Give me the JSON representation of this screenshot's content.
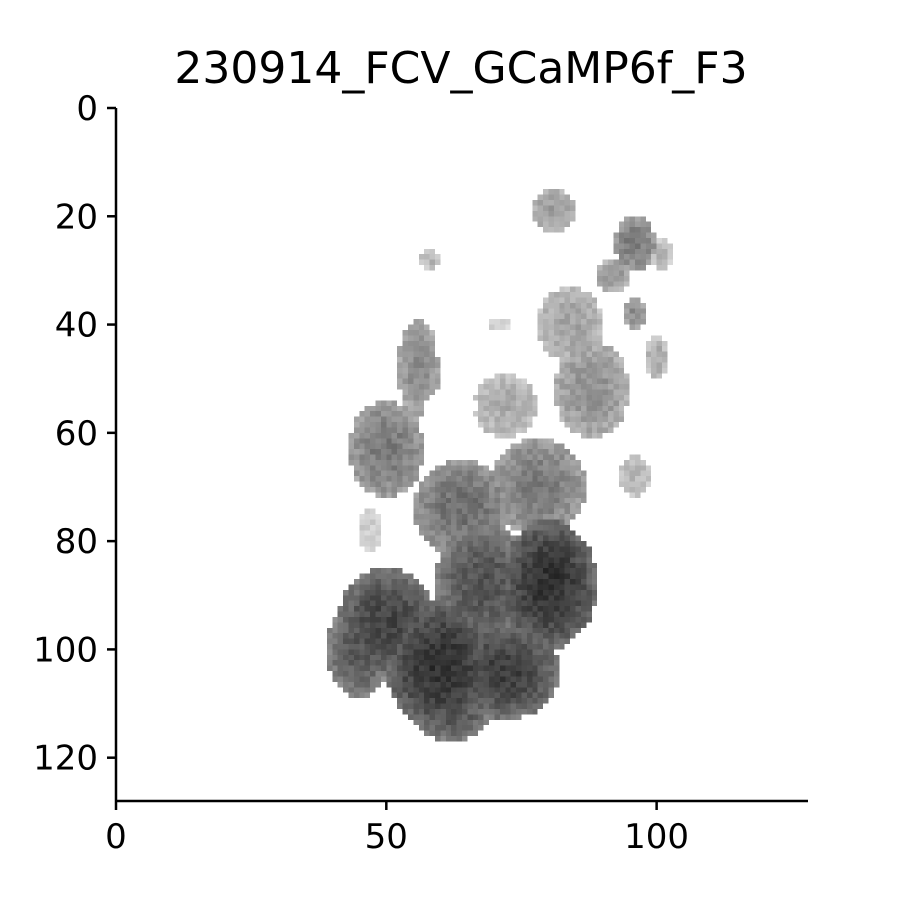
{
  "chart_data": {
    "type": "heatmap",
    "title": "230914_FCV_GCaMP6f_F3",
    "xlabel": "",
    "ylabel": "",
    "xlim": [
      0,
      128
    ],
    "ylim": [
      128,
      0
    ],
    "y_inverted": true,
    "colormap": "gray_r",
    "grid": false,
    "x_ticks": [
      0,
      50,
      100
    ],
    "x_tick_labels": [
      "0",
      "50",
      "100"
    ],
    "y_ticks": [
      0,
      20,
      40,
      60,
      80,
      100,
      120
    ],
    "y_tick_labels": [
      "0",
      "20",
      "40",
      "60",
      "80",
      "100",
      "120"
    ],
    "blobs": [
      {
        "cx": 60,
        "cy": 103,
        "rx": 10,
        "ry": 12,
        "v": 0.85
      },
      {
        "cx": 50,
        "cy": 95,
        "rx": 9,
        "ry": 10,
        "v": 0.78
      },
      {
        "cx": 72,
        "cy": 104,
        "rx": 10,
        "ry": 9,
        "v": 0.8
      },
      {
        "cx": 80,
        "cy": 88,
        "rx": 9,
        "ry": 12,
        "v": 0.85
      },
      {
        "cx": 68,
        "cy": 88,
        "rx": 9,
        "ry": 11,
        "v": 0.72
      },
      {
        "cx": 62,
        "cy": 112,
        "rx": 7,
        "ry": 5,
        "v": 0.72
      },
      {
        "cx": 45,
        "cy": 100,
        "rx": 6,
        "ry": 9,
        "v": 0.7
      },
      {
        "cx": 64,
        "cy": 74,
        "rx": 9,
        "ry": 9,
        "v": 0.6
      },
      {
        "cx": 78,
        "cy": 70,
        "rx": 9,
        "ry": 9,
        "v": 0.55
      },
      {
        "cx": 50,
        "cy": 63,
        "rx": 7,
        "ry": 9,
        "v": 0.55
      },
      {
        "cx": 56,
        "cy": 48,
        "rx": 4,
        "ry": 9,
        "v": 0.48
      },
      {
        "cx": 72,
        "cy": 55,
        "rx": 6,
        "ry": 6,
        "v": 0.35
      },
      {
        "cx": 88,
        "cy": 52,
        "rx": 7,
        "ry": 9,
        "v": 0.45
      },
      {
        "cx": 84,
        "cy": 40,
        "rx": 6,
        "ry": 7,
        "v": 0.38
      },
      {
        "cx": 96,
        "cy": 25,
        "rx": 4,
        "ry": 5,
        "v": 0.55
      },
      {
        "cx": 81,
        "cy": 19,
        "rx": 4,
        "ry": 4,
        "v": 0.42
      },
      {
        "cx": 92,
        "cy": 31,
        "rx": 3,
        "ry": 3,
        "v": 0.45
      },
      {
        "cx": 100,
        "cy": 46,
        "rx": 2,
        "ry": 4,
        "v": 0.35
      },
      {
        "cx": 101,
        "cy": 27,
        "rx": 2,
        "ry": 3,
        "v": 0.3
      },
      {
        "cx": 96,
        "cy": 38,
        "rx": 2,
        "ry": 3,
        "v": 0.48
      },
      {
        "cx": 58,
        "cy": 28,
        "rx": 2,
        "ry": 2,
        "v": 0.3
      },
      {
        "cx": 71,
        "cy": 40,
        "rx": 2,
        "ry": 1,
        "v": 0.22
      },
      {
        "cx": 96,
        "cy": 68,
        "rx": 3,
        "ry": 4,
        "v": 0.3
      },
      {
        "cx": 47,
        "cy": 78,
        "rx": 2,
        "ry": 4,
        "v": 0.22
      }
    ],
    "holes": [
      {
        "cx": 53,
        "cy": 81,
        "rx": 2.5,
        "ry": 3
      },
      {
        "cx": 64,
        "cy": 43,
        "rx": 5,
        "ry": 8
      },
      {
        "cx": 62,
        "cy": 55,
        "rx": 5,
        "ry": 3
      }
    ]
  }
}
